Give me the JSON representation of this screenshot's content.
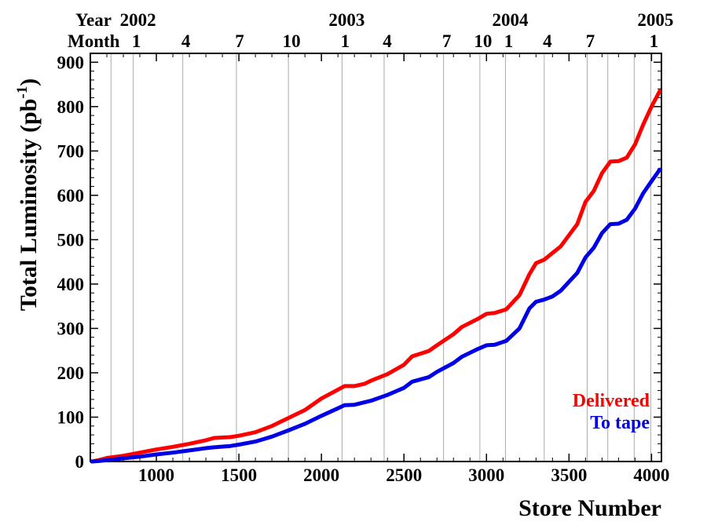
{
  "chart_data": {
    "type": "line",
    "xlabel": "Store Number",
    "ylabel": "Total Luminosity (pb",
    "ylabel_sup": "-1",
    "ylabel_close": ")",
    "xlim": [
      600,
      4060
    ],
    "ylim": [
      0,
      920
    ],
    "x_ticks": [
      1000,
      1500,
      2000,
      2500,
      3000,
      3500,
      4000
    ],
    "y_ticks": [
      0,
      100,
      200,
      300,
      400,
      500,
      600,
      700,
      800,
      900
    ],
    "top_axis": {
      "year_label": "Year",
      "month_label": "Month",
      "years": [
        {
          "label": "2002",
          "x": 860
        },
        {
          "label": "2003",
          "x": 2125
        },
        {
          "label": "2004",
          "x": 3115
        },
        {
          "label": "2005",
          "x": 3995
        }
      ],
      "months": [
        {
          "label": "1",
          "x": 860
        },
        {
          "label": "4",
          "x": 1160
        },
        {
          "label": "7",
          "x": 1485
        },
        {
          "label": "10",
          "x": 1800
        },
        {
          "label": "1",
          "x": 2125
        },
        {
          "label": "4",
          "x": 2380
        },
        {
          "label": "7",
          "x": 2740
        },
        {
          "label": "10",
          "x": 2960
        },
        {
          "label": "1",
          "x": 3115
        },
        {
          "label": "4",
          "x": 3350
        },
        {
          "label": "7",
          "x": 3610
        },
        {
          "label": "1",
          "x": 3995
        }
      ],
      "gridlines": [
        725,
        860,
        1160,
        1485,
        1800,
        2125,
        2380,
        2740,
        2960,
        3115,
        3350,
        3610,
        3735,
        3895,
        3995
      ]
    },
    "legend_position": "bottom-right",
    "series": [
      {
        "name": "Delivered",
        "color": "#ff0000",
        "points": [
          [
            610,
            0
          ],
          [
            650,
            3
          ],
          [
            700,
            8
          ],
          [
            800,
            13
          ],
          [
            900,
            20
          ],
          [
            1000,
            27
          ],
          [
            1100,
            33
          ],
          [
            1200,
            40
          ],
          [
            1300,
            48
          ],
          [
            1350,
            53
          ],
          [
            1450,
            55
          ],
          [
            1500,
            58
          ],
          [
            1600,
            66
          ],
          [
            1700,
            80
          ],
          [
            1800,
            98
          ],
          [
            1900,
            116
          ],
          [
            2000,
            142
          ],
          [
            2100,
            162
          ],
          [
            2140,
            170
          ],
          [
            2200,
            170
          ],
          [
            2260,
            175
          ],
          [
            2300,
            182
          ],
          [
            2400,
            197
          ],
          [
            2500,
            218
          ],
          [
            2550,
            237
          ],
          [
            2650,
            249
          ],
          [
            2700,
            262
          ],
          [
            2800,
            287
          ],
          [
            2850,
            303
          ],
          [
            2950,
            322
          ],
          [
            3000,
            333
          ],
          [
            3050,
            335
          ],
          [
            3120,
            343
          ],
          [
            3200,
            375
          ],
          [
            3260,
            422
          ],
          [
            3300,
            447
          ],
          [
            3350,
            455
          ],
          [
            3400,
            470
          ],
          [
            3450,
            485
          ],
          [
            3500,
            510
          ],
          [
            3550,
            535
          ],
          [
            3600,
            585
          ],
          [
            3650,
            610
          ],
          [
            3700,
            650
          ],
          [
            3750,
            676
          ],
          [
            3800,
            677
          ],
          [
            3850,
            685
          ],
          [
            3900,
            715
          ],
          [
            3950,
            760
          ],
          [
            4000,
            800
          ],
          [
            4050,
            835
          ]
        ]
      },
      {
        "name": "To tape",
        "color": "#0000e6",
        "points": [
          [
            610,
            0
          ],
          [
            650,
            1
          ],
          [
            700,
            3
          ],
          [
            800,
            7
          ],
          [
            900,
            11
          ],
          [
            1000,
            16
          ],
          [
            1100,
            20
          ],
          [
            1200,
            25
          ],
          [
            1300,
            30
          ],
          [
            1350,
            32
          ],
          [
            1450,
            35
          ],
          [
            1500,
            38
          ],
          [
            1600,
            45
          ],
          [
            1700,
            56
          ],
          [
            1800,
            70
          ],
          [
            1900,
            85
          ],
          [
            2000,
            103
          ],
          [
            2100,
            120
          ],
          [
            2140,
            127
          ],
          [
            2200,
            128
          ],
          [
            2300,
            137
          ],
          [
            2400,
            150
          ],
          [
            2500,
            166
          ],
          [
            2550,
            180
          ],
          [
            2650,
            190
          ],
          [
            2700,
            202
          ],
          [
            2800,
            222
          ],
          [
            2850,
            236
          ],
          [
            2950,
            254
          ],
          [
            3000,
            262
          ],
          [
            3050,
            263
          ],
          [
            3120,
            272
          ],
          [
            3200,
            300
          ],
          [
            3260,
            345
          ],
          [
            3300,
            360
          ],
          [
            3350,
            365
          ],
          [
            3400,
            372
          ],
          [
            3450,
            385
          ],
          [
            3500,
            405
          ],
          [
            3550,
            425
          ],
          [
            3600,
            460
          ],
          [
            3650,
            482
          ],
          [
            3700,
            515
          ],
          [
            3750,
            535
          ],
          [
            3800,
            536
          ],
          [
            3850,
            545
          ],
          [
            3900,
            570
          ],
          [
            3950,
            605
          ],
          [
            4000,
            632
          ],
          [
            4050,
            658
          ]
        ]
      }
    ]
  }
}
